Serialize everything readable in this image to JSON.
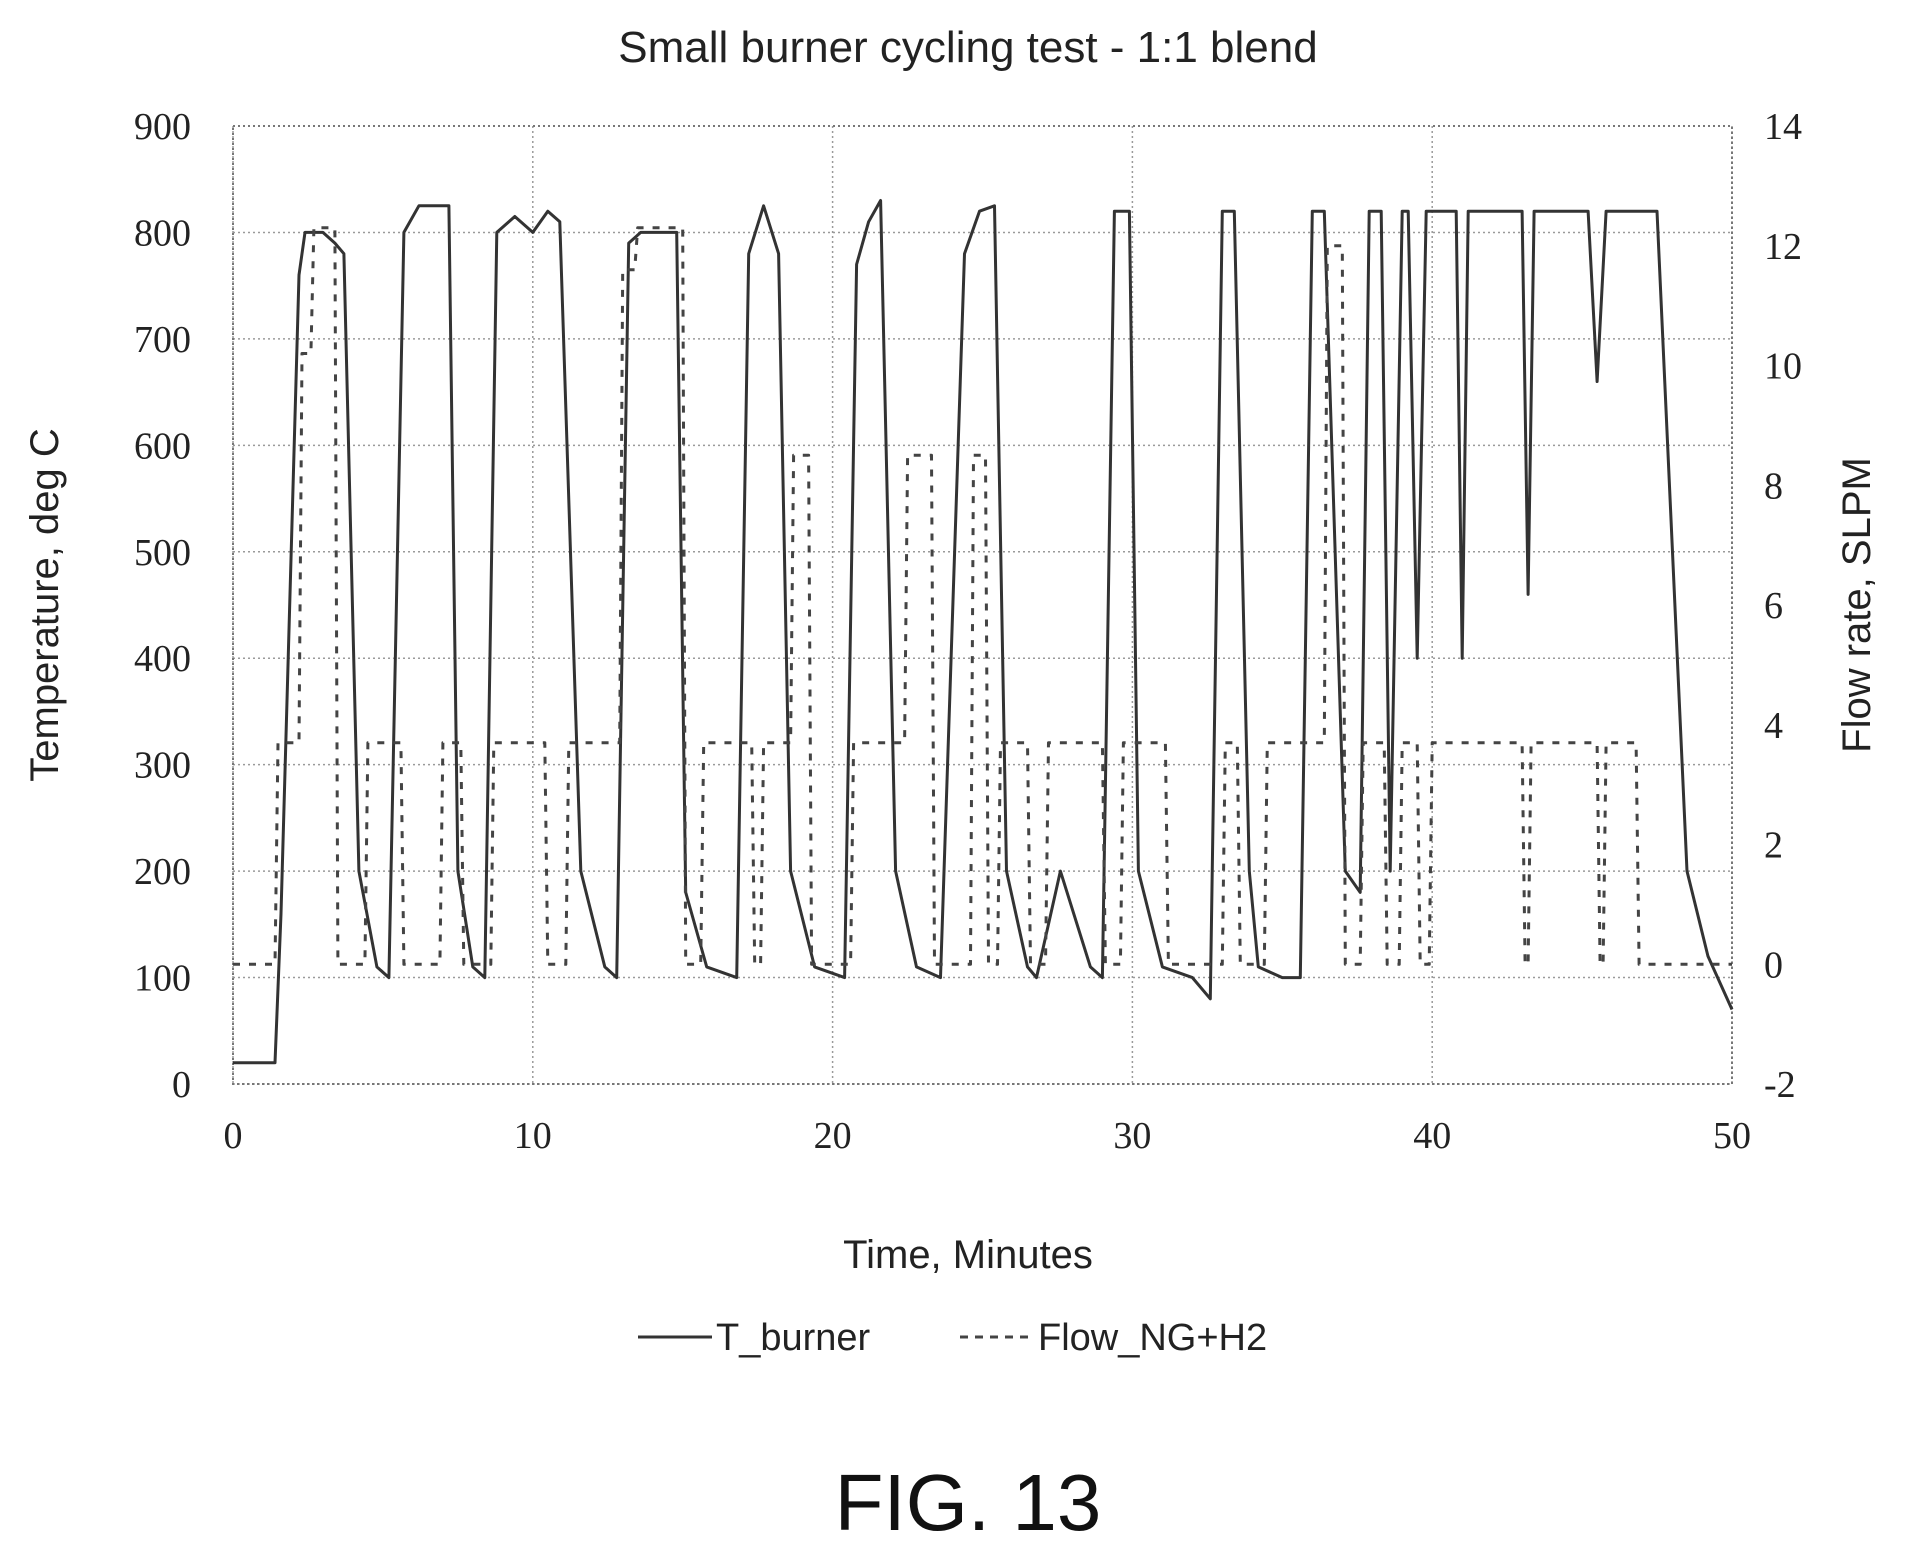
{
  "chart_data": {
    "type": "line",
    "title": "Small burner cycling test - 1:1 blend",
    "xlabel": "Time, Minutes",
    "ylabel": "Temperature, deg C",
    "y2label": "Flow rate, SLPM",
    "xlim": [
      0,
      50
    ],
    "ylim": [
      0,
      900
    ],
    "y2lim": [
      -2,
      14
    ],
    "xticks": [
      "0",
      "10",
      "20",
      "30",
      "40",
      "50"
    ],
    "yticks": [
      "0",
      "100",
      "200",
      "300",
      "400",
      "500",
      "600",
      "700",
      "800",
      "900"
    ],
    "y2ticks": [
      "-2",
      "0",
      "2",
      "4",
      "6",
      "8",
      "10",
      "12",
      "14"
    ],
    "grid": true,
    "legend_position": "bottom",
    "series": [
      {
        "name": "T_burner",
        "axis": "left",
        "style": "solid",
        "color": "#333333",
        "x": [
          0,
          1.4,
          1.6,
          2.2,
          2.4,
          3.0,
          3.4,
          3.7,
          4.2,
          4.8,
          5.2,
          5.7,
          6.2,
          7.2,
          7.5,
          8.0,
          8.4,
          8.8,
          9.4,
          10.0,
          10.5,
          10.9,
          11.6,
          12.4,
          12.8,
          13.2,
          13.6,
          14.8,
          15.1,
          15.8,
          16.8,
          17.2,
          17.7,
          18.2,
          18.6,
          19.4,
          20.4,
          20.8,
          21.2,
          21.6,
          22.1,
          22.8,
          23.6,
          24.4,
          24.9,
          25.4,
          25.8,
          26.5,
          26.8,
          27.6,
          28.6,
          29.0,
          29.4,
          29.9,
          30.2,
          31.0,
          32.0,
          32.6,
          33.0,
          33.4,
          33.9,
          34.2,
          35.0,
          35.6,
          36.0,
          36.4,
          37.1,
          37.6,
          37.9,
          38.3,
          38.6,
          39.0,
          39.2,
          39.5,
          39.8,
          40.3,
          40.8,
          41.0,
          41.2,
          41.6,
          42.5,
          43.0,
          43.2,
          43.4,
          43.7,
          44.6,
          45.2,
          45.5,
          45.8,
          46.4,
          47.0,
          47.5,
          48.5,
          49.2,
          50.0
        ],
        "y": [
          20,
          20,
          160,
          760,
          800,
          800,
          790,
          780,
          200,
          110,
          100,
          800,
          825,
          825,
          200,
          110,
          100,
          800,
          815,
          800,
          820,
          810,
          200,
          110,
          100,
          790,
          800,
          800,
          180,
          110,
          100,
          780,
          825,
          780,
          200,
          110,
          100,
          770,
          810,
          830,
          200,
          110,
          100,
          780,
          820,
          825,
          200,
          110,
          100,
          200,
          110,
          100,
          820,
          820,
          200,
          110,
          100,
          80,
          820,
          820,
          200,
          110,
          100,
          100,
          820,
          820,
          200,
          180,
          820,
          820,
          200,
          820,
          820,
          400,
          820,
          820,
          820,
          400,
          820,
          820,
          820,
          820,
          460,
          820,
          820,
          820,
          820,
          660,
          820,
          820,
          820,
          820,
          200,
          120,
          70
        ]
      },
      {
        "name": "Flow_NG+H2",
        "axis": "right",
        "style": "dashed",
        "color": "#444444",
        "x": [
          0,
          1.4,
          1.5,
          2.2,
          2.3,
          2.6,
          2.7,
          3.4,
          3.5,
          4.4,
          4.5,
          5.6,
          5.7,
          6.9,
          7.0,
          7.6,
          7.7,
          8.6,
          8.7,
          10.4,
          10.5,
          11.1,
          11.2,
          12.9,
          13.0,
          13.4,
          13.5,
          15.0,
          15.1,
          15.6,
          15.7,
          17.3,
          17.4,
          17.6,
          17.7,
          18.6,
          18.7,
          19.2,
          19.3,
          20.6,
          20.7,
          22.4,
          22.5,
          23.3,
          23.4,
          24.6,
          24.7,
          25.1,
          25.2,
          25.5,
          25.6,
          26.5,
          26.6,
          27.1,
          27.2,
          29.0,
          29.1,
          29.6,
          29.7,
          31.1,
          31.2,
          33.0,
          33.1,
          33.5,
          33.6,
          34.4,
          34.5,
          36.4,
          36.5,
          37.0,
          37.1,
          37.6,
          37.7,
          38.4,
          38.5,
          38.9,
          39.0,
          39.5,
          39.6,
          39.9,
          40.0,
          40.2,
          40.3,
          43.0,
          43.1,
          43.2,
          43.3,
          45.5,
          45.6,
          45.7,
          45.8,
          46.8,
          46.9,
          50.0
        ],
        "y": [
          0,
          0,
          3.7,
          3.7,
          10.2,
          10.2,
          12.3,
          12.3,
          0,
          0,
          3.7,
          3.7,
          0,
          0,
          3.7,
          3.7,
          0,
          0,
          3.7,
          3.7,
          0,
          0,
          3.7,
          3.7,
          11.6,
          11.6,
          12.3,
          12.3,
          0,
          0,
          3.7,
          3.7,
          0,
          0,
          3.7,
          3.7,
          8.5,
          8.5,
          0,
          0,
          3.7,
          3.7,
          8.5,
          8.5,
          0,
          0,
          8.5,
          8.5,
          0,
          0,
          3.7,
          3.7,
          0,
          0,
          3.7,
          3.7,
          0,
          0,
          3.7,
          3.7,
          0,
          0,
          3.7,
          3.7,
          0,
          0,
          3.7,
          3.7,
          12.0,
          12.0,
          0,
          0,
          3.7,
          3.7,
          0,
          0,
          3.7,
          3.7,
          0,
          0,
          3.7,
          3.7,
          3.7,
          3.7,
          0,
          0,
          3.7,
          3.7,
          0,
          0,
          3.7,
          3.7,
          0,
          0
        ]
      }
    ]
  },
  "figure_caption": "FIG. 13"
}
